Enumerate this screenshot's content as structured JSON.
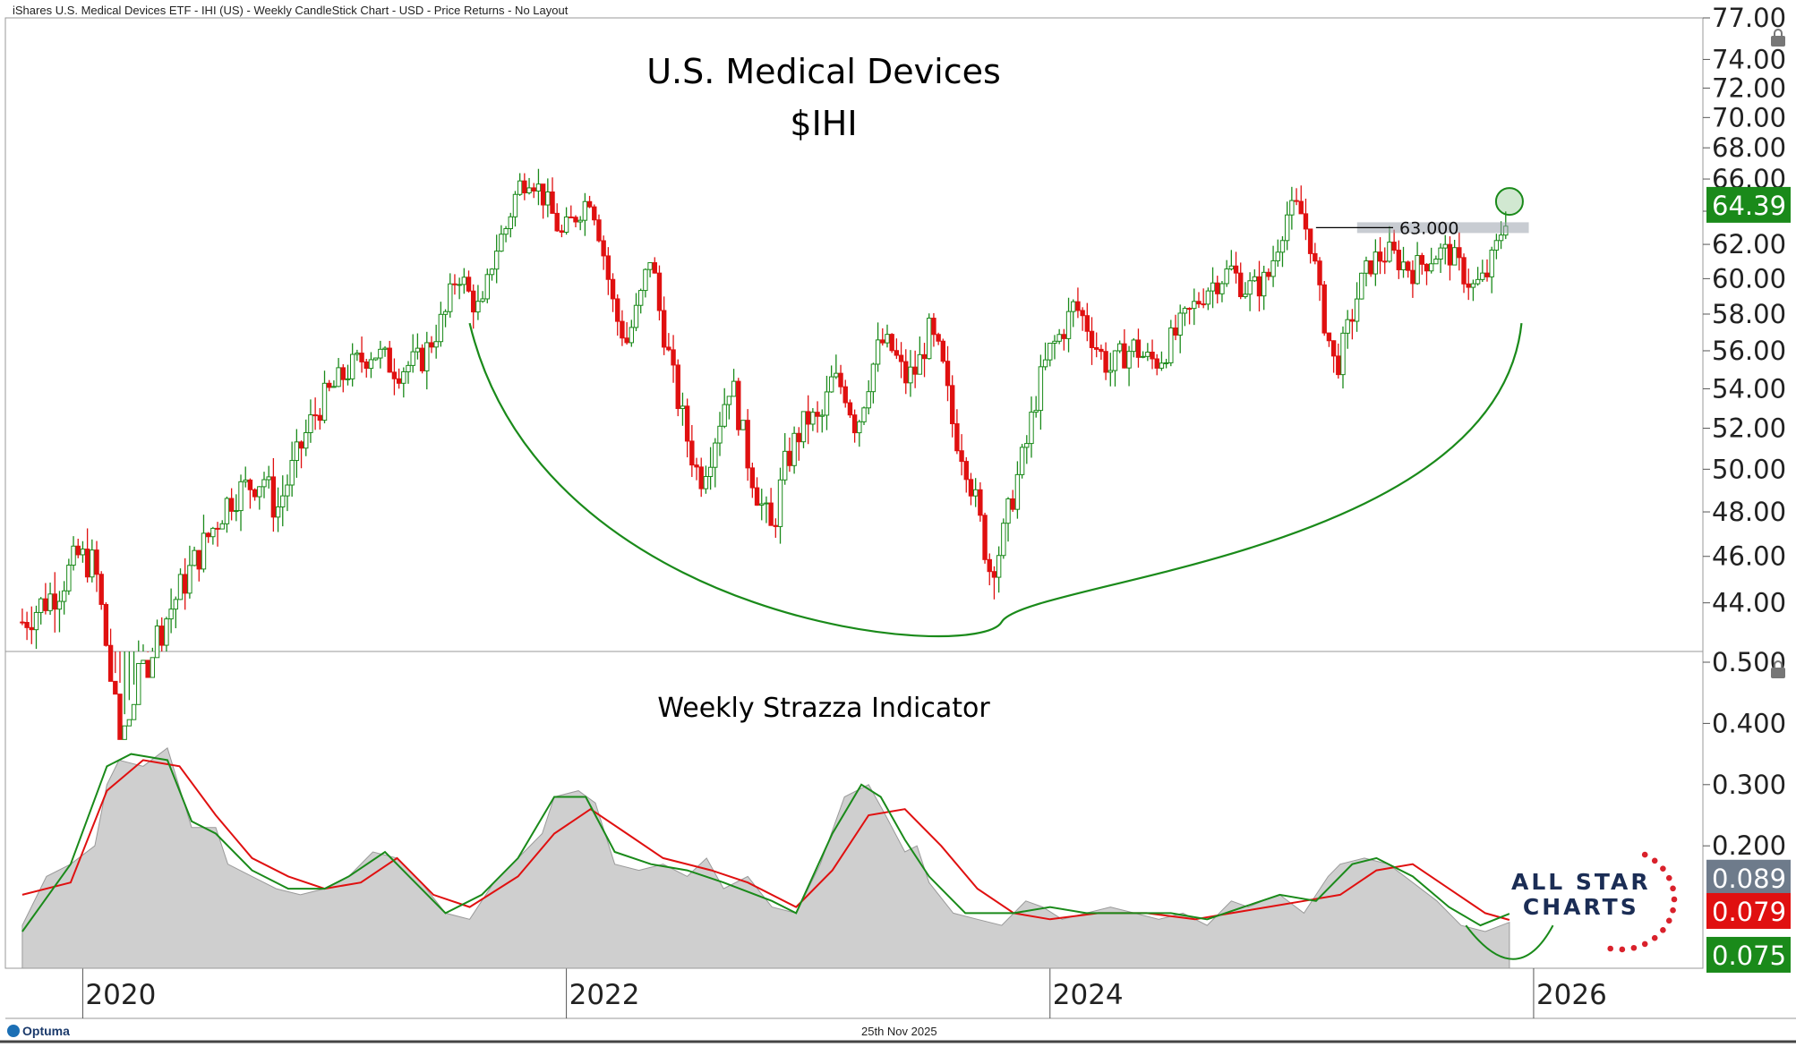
{
  "header": "iShares U.S. Medical Devices ETF - IHI (US) - Weekly CandleStick Chart - USD - Price Returns - No Layout",
  "footer_date": "25th Nov 2025",
  "logo_text": "Optuma",
  "brand": {
    "line1": "ALL STAR",
    "line2": "CHARTS"
  },
  "colors": {
    "up": "#1a8a1a",
    "down": "#e01010",
    "curve": "#1a8a1a",
    "sma_fast": "#1a8a1a",
    "sma_slow": "#e01010",
    "area": "#cfcfcf"
  },
  "chart_data": [
    {
      "type": "candlestick",
      "title": "U.S. Medical Devices",
      "subtitle": "$IHI",
      "ylim": [
        42,
        77
      ],
      "y_ticks": [
        "44.00",
        "46.00",
        "48.00",
        "50.00",
        "52.00",
        "54.00",
        "56.00",
        "58.00",
        "60.00",
        "62.00",
        "64.00",
        "66.00",
        "68.00",
        "70.00",
        "72.00",
        "74.00",
        "77.00"
      ],
      "last_price": "64.39",
      "resistance": {
        "value": 63.0,
        "label": "63.000"
      },
      "x_ticks": [
        "2020",
        "2022",
        "2024",
        "2026"
      ],
      "close_path": [
        [
          2019.75,
          43.2
        ],
        [
          2019.9,
          44.6
        ],
        [
          2019.98,
          46.0
        ],
        [
          2020.05,
          45.6
        ],
        [
          2020.15,
          38.5
        ],
        [
          2020.2,
          40.0
        ],
        [
          2020.3,
          42.5
        ],
        [
          2020.4,
          44.5
        ],
        [
          2020.5,
          46.5
        ],
        [
          2020.6,
          48.5
        ],
        [
          2020.65,
          49.0
        ],
        [
          2020.75,
          49.6
        ],
        [
          2020.8,
          48.0
        ],
        [
          2020.9,
          51.0
        ],
        [
          2020.95,
          52.5
        ],
        [
          2021.0,
          53.5
        ],
        [
          2021.1,
          55.0
        ],
        [
          2021.2,
          56.0
        ],
        [
          2021.3,
          55.0
        ],
        [
          2021.4,
          55.5
        ],
        [
          2021.5,
          58.0
        ],
        [
          2021.55,
          60.5
        ],
        [
          2021.6,
          59.0
        ],
        [
          2021.65,
          58.0
        ],
        [
          2021.7,
          61.5
        ],
        [
          2021.75,
          63.0
        ],
        [
          2021.8,
          65.5
        ],
        [
          2021.85,
          66.3
        ],
        [
          2021.92,
          64.5
        ],
        [
          2021.98,
          62.5
        ],
        [
          2022.05,
          64.0
        ],
        [
          2022.1,
          65.0
        ],
        [
          2022.14,
          62.5
        ],
        [
          2022.2,
          58.0
        ],
        [
          2022.25,
          56.5
        ],
        [
          2022.3,
          58.5
        ],
        [
          2022.35,
          61.5
        ],
        [
          2022.38,
          58.5
        ],
        [
          2022.45,
          54.0
        ],
        [
          2022.5,
          51.5
        ],
        [
          2022.55,
          49.5
        ],
        [
          2022.6,
          51.0
        ],
        [
          2022.68,
          54.5
        ],
        [
          2022.75,
          50.5
        ],
        [
          2022.8,
          48.5
        ],
        [
          2022.85,
          47.0
        ],
        [
          2022.9,
          50.0
        ],
        [
          2022.95,
          51.5
        ],
        [
          2023.0,
          52.5
        ],
        [
          2023.05,
          52.2
        ],
        [
          2023.1,
          54.5
        ],
        [
          2023.15,
          54.0
        ],
        [
          2023.2,
          52.0
        ],
        [
          2023.25,
          54.5
        ],
        [
          2023.3,
          56.5
        ],
        [
          2023.35,
          56.0
        ],
        [
          2023.4,
          54.5
        ],
        [
          2023.45,
          55.0
        ],
        [
          2023.5,
          57.0
        ],
        [
          2023.55,
          55.5
        ],
        [
          2023.6,
          52.0
        ],
        [
          2023.65,
          50.5
        ],
        [
          2023.7,
          48.0
        ],
        [
          2023.75,
          45.5
        ],
        [
          2023.8,
          46.5
        ],
        [
          2023.85,
          49.0
        ],
        [
          2023.9,
          51.0
        ],
        [
          2023.95,
          54.0
        ],
        [
          2024.0,
          56.0
        ],
        [
          2024.05,
          57.0
        ],
        [
          2024.1,
          58.5
        ],
        [
          2024.15,
          57.5
        ],
        [
          2024.2,
          56.0
        ],
        [
          2024.25,
          55.0
        ],
        [
          2024.3,
          55.8
        ],
        [
          2024.35,
          56.2
        ],
        [
          2024.4,
          55.5
        ],
        [
          2024.45,
          55.5
        ],
        [
          2024.5,
          56.5
        ],
        [
          2024.55,
          57.5
        ],
        [
          2024.6,
          58.5
        ],
        [
          2024.65,
          59.5
        ],
        [
          2024.7,
          60.0
        ],
        [
          2024.75,
          60.5
        ],
        [
          2024.8,
          59.5
        ],
        [
          2024.85,
          59.5
        ],
        [
          2024.9,
          60.0
        ],
        [
          2024.95,
          62.5
        ],
        [
          2024.98,
          63.8
        ],
        [
          2025.03,
          64.2
        ],
        [
          2025.08,
          62.0
        ],
        [
          2025.12,
          58.5
        ],
        [
          2025.18,
          55.0
        ],
        [
          2025.22,
          56.5
        ],
        [
          2025.28,
          59.5
        ],
        [
          2025.33,
          61.0
        ],
        [
          2025.4,
          61.5
        ],
        [
          2025.45,
          61.0
        ],
        [
          2025.5,
          60.5
        ],
        [
          2025.55,
          61.0
        ],
        [
          2025.6,
          61.5
        ],
        [
          2025.65,
          61.5
        ],
        [
          2025.7,
          60.5
        ],
        [
          2025.75,
          59.5
        ],
        [
          2025.8,
          60.0
        ],
        [
          2025.84,
          61.5
        ],
        [
          2025.87,
          63.0
        ],
        [
          2025.9,
          64.39
        ]
      ]
    },
    {
      "type": "area",
      "title": "Weekly Strazza Indicator",
      "ylim": [
        0,
        0.5
      ],
      "y_ticks": [
        "0.500",
        "0.400",
        "0.300",
        "0.200"
      ],
      "x_ticks": [
        "2020",
        "2022",
        "2024",
        "2026"
      ],
      "value_labels": [
        "0.089",
        "0.079",
        "0.075"
      ],
      "series": [
        {
          "values_path": [
            [
              2019.75,
              0.07
            ],
            [
              2019.85,
              0.15
            ],
            [
              2019.95,
              0.17
            ],
            [
              2020.05,
              0.2
            ],
            [
              2020.1,
              0.3
            ],
            [
              2020.15,
              0.34
            ],
            [
              2020.25,
              0.33
            ],
            [
              2020.35,
              0.36
            ],
            [
              2020.45,
              0.23
            ],
            [
              2020.55,
              0.23
            ],
            [
              2020.6,
              0.17
            ],
            [
              2020.7,
              0.15
            ],
            [
              2020.8,
              0.13
            ],
            [
              2020.9,
              0.12
            ],
            [
              2021.0,
              0.13
            ],
            [
              2021.1,
              0.15
            ],
            [
              2021.2,
              0.19
            ],
            [
              2021.3,
              0.18
            ],
            [
              2021.4,
              0.14
            ],
            [
              2021.5,
              0.09
            ],
            [
              2021.6,
              0.08
            ],
            [
              2021.7,
              0.14
            ],
            [
              2021.8,
              0.18
            ],
            [
              2021.9,
              0.22
            ],
            [
              2021.95,
              0.28
            ],
            [
              2022.05,
              0.29
            ],
            [
              2022.12,
              0.27
            ],
            [
              2022.2,
              0.17
            ],
            [
              2022.3,
              0.16
            ],
            [
              2022.4,
              0.17
            ],
            [
              2022.5,
              0.15
            ],
            [
              2022.58,
              0.18
            ],
            [
              2022.65,
              0.13
            ],
            [
              2022.75,
              0.15
            ],
            [
              2022.85,
              0.1
            ],
            [
              2022.95,
              0.09
            ],
            [
              2023.05,
              0.17
            ],
            [
              2023.15,
              0.28
            ],
            [
              2023.25,
              0.3
            ],
            [
              2023.32,
              0.25
            ],
            [
              2023.4,
              0.19
            ],
            [
              2023.45,
              0.2
            ],
            [
              2023.5,
              0.14
            ],
            [
              2023.6,
              0.09
            ],
            [
              2023.7,
              0.08
            ],
            [
              2023.8,
              0.07
            ],
            [
              2023.9,
              0.11
            ],
            [
              2023.97,
              0.1
            ],
            [
              2024.05,
              0.08
            ],
            [
              2024.15,
              0.09
            ],
            [
              2024.25,
              0.1
            ],
            [
              2024.35,
              0.09
            ],
            [
              2024.45,
              0.08
            ],
            [
              2024.55,
              0.09
            ],
            [
              2024.65,
              0.07
            ],
            [
              2024.75,
              0.11
            ],
            [
              2024.82,
              0.1
            ],
            [
              2024.88,
              0.11
            ],
            [
              2024.95,
              0.12
            ],
            [
              2025.05,
              0.09
            ],
            [
              2025.15,
              0.15
            ],
            [
              2025.2,
              0.17
            ],
            [
              2025.3,
              0.18
            ],
            [
              2025.4,
              0.17
            ],
            [
              2025.5,
              0.14
            ],
            [
              2025.6,
              0.11
            ],
            [
              2025.7,
              0.07
            ],
            [
              2025.8,
              0.06
            ],
            [
              2025.9,
              0.075
            ]
          ]
        },
        {
          "values_path": [
            [
              2019.75,
              0.06
            ],
            [
              2019.95,
              0.17
            ],
            [
              2020.1,
              0.33
            ],
            [
              2020.2,
              0.35
            ],
            [
              2020.35,
              0.34
            ],
            [
              2020.45,
              0.24
            ],
            [
              2020.55,
              0.22
            ],
            [
              2020.7,
              0.16
            ],
            [
              2020.85,
              0.13
            ],
            [
              2021.0,
              0.13
            ],
            [
              2021.1,
              0.15
            ],
            [
              2021.25,
              0.19
            ],
            [
              2021.35,
              0.15
            ],
            [
              2021.5,
              0.09
            ],
            [
              2021.65,
              0.12
            ],
            [
              2021.8,
              0.18
            ],
            [
              2021.95,
              0.28
            ],
            [
              2022.08,
              0.28
            ],
            [
              2022.2,
              0.19
            ],
            [
              2022.35,
              0.17
            ],
            [
              2022.5,
              0.16
            ],
            [
              2022.65,
              0.14
            ],
            [
              2022.85,
              0.11
            ],
            [
              2022.95,
              0.09
            ],
            [
              2023.1,
              0.22
            ],
            [
              2023.22,
              0.3
            ],
            [
              2023.3,
              0.28
            ],
            [
              2023.4,
              0.21
            ],
            [
              2023.5,
              0.15
            ],
            [
              2023.65,
              0.09
            ],
            [
              2023.85,
              0.09
            ],
            [
              2024.0,
              0.1
            ],
            [
              2024.15,
              0.09
            ],
            [
              2024.3,
              0.09
            ],
            [
              2024.5,
              0.09
            ],
            [
              2024.65,
              0.08
            ],
            [
              2024.8,
              0.1
            ],
            [
              2024.95,
              0.12
            ],
            [
              2025.1,
              0.11
            ],
            [
              2025.25,
              0.17
            ],
            [
              2025.35,
              0.18
            ],
            [
              2025.5,
              0.15
            ],
            [
              2025.65,
              0.1
            ],
            [
              2025.78,
              0.07
            ],
            [
              2025.9,
              0.089
            ]
          ]
        },
        {
          "values_path": [
            [
              2019.75,
              0.12
            ],
            [
              2019.95,
              0.14
            ],
            [
              2020.1,
              0.29
            ],
            [
              2020.25,
              0.34
            ],
            [
              2020.4,
              0.33
            ],
            [
              2020.55,
              0.25
            ],
            [
              2020.7,
              0.18
            ],
            [
              2020.85,
              0.15
            ],
            [
              2021.0,
              0.13
            ],
            [
              2021.15,
              0.14
            ],
            [
              2021.3,
              0.18
            ],
            [
              2021.45,
              0.12
            ],
            [
              2021.6,
              0.1
            ],
            [
              2021.8,
              0.15
            ],
            [
              2021.95,
              0.22
            ],
            [
              2022.1,
              0.26
            ],
            [
              2022.25,
              0.22
            ],
            [
              2022.4,
              0.18
            ],
            [
              2022.6,
              0.16
            ],
            [
              2022.75,
              0.14
            ],
            [
              2022.95,
              0.1
            ],
            [
              2023.1,
              0.16
            ],
            [
              2023.25,
              0.25
            ],
            [
              2023.4,
              0.26
            ],
            [
              2023.55,
              0.2
            ],
            [
              2023.7,
              0.13
            ],
            [
              2023.85,
              0.09
            ],
            [
              2024.0,
              0.08
            ],
            [
              2024.2,
              0.09
            ],
            [
              2024.4,
              0.09
            ],
            [
              2024.6,
              0.08
            ],
            [
              2024.75,
              0.09
            ],
            [
              2024.9,
              0.1
            ],
            [
              2025.05,
              0.11
            ],
            [
              2025.2,
              0.12
            ],
            [
              2025.35,
              0.16
            ],
            [
              2025.5,
              0.17
            ],
            [
              2025.65,
              0.13
            ],
            [
              2025.8,
              0.09
            ],
            [
              2025.9,
              0.079
            ]
          ]
        }
      ]
    }
  ]
}
